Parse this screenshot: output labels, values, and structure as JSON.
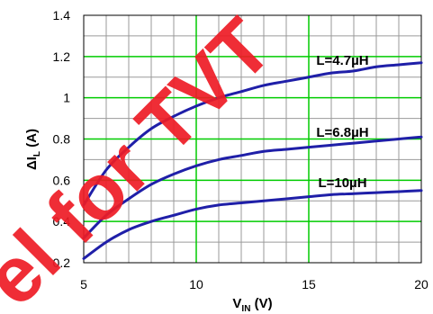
{
  "chart_data": {
    "type": "line",
    "xlabel": {
      "main": "V",
      "sub": "IN",
      "unit": " (V)"
    },
    "ylabel": {
      "prefix": "ΔI",
      "sub": "L",
      "unit": " (A)"
    },
    "xlim": [
      5,
      20
    ],
    "ylim": [
      0.2,
      1.4
    ],
    "x_ticks": [
      "5",
      "10",
      "15",
      "20"
    ],
    "y_ticks": [
      "0.2",
      "0.4",
      "0.6",
      "0.8",
      "1",
      "1.2",
      "1.4"
    ],
    "grid": true,
    "minor_x_step": 1,
    "y_step": 0.1,
    "series": [
      {
        "name": "L=4.7µH",
        "color": "#1f1fa8",
        "x": [
          5,
          6,
          7,
          8,
          9,
          10,
          11,
          12,
          13,
          14,
          15,
          16,
          17,
          18,
          19,
          20
        ],
        "y": [
          0.48,
          0.65,
          0.76,
          0.85,
          0.91,
          0.96,
          1.0,
          1.03,
          1.06,
          1.08,
          1.1,
          1.12,
          1.13,
          1.15,
          1.16,
          1.17
        ]
      },
      {
        "name": "L=6.8µH",
        "color": "#1f1fa8",
        "x": [
          5,
          6,
          7,
          8,
          9,
          10,
          11,
          12,
          13,
          14,
          15,
          16,
          17,
          18,
          19,
          20
        ],
        "y": [
          0.32,
          0.43,
          0.51,
          0.58,
          0.63,
          0.67,
          0.7,
          0.72,
          0.74,
          0.75,
          0.76,
          0.77,
          0.78,
          0.79,
          0.8,
          0.81
        ]
      },
      {
        "name": "L=10µH",
        "color": "#1f1fa8",
        "x": [
          5,
          6,
          7,
          8,
          9,
          10,
          11,
          12,
          13,
          14,
          15,
          16,
          17,
          18,
          19,
          20
        ],
        "y": [
          0.22,
          0.3,
          0.36,
          0.4,
          0.43,
          0.46,
          0.48,
          0.49,
          0.5,
          0.51,
          0.52,
          0.53,
          0.535,
          0.54,
          0.545,
          0.55
        ]
      }
    ]
  },
  "watermark": {
    "text": "el for TVT",
    "color": "#ee1c25"
  }
}
